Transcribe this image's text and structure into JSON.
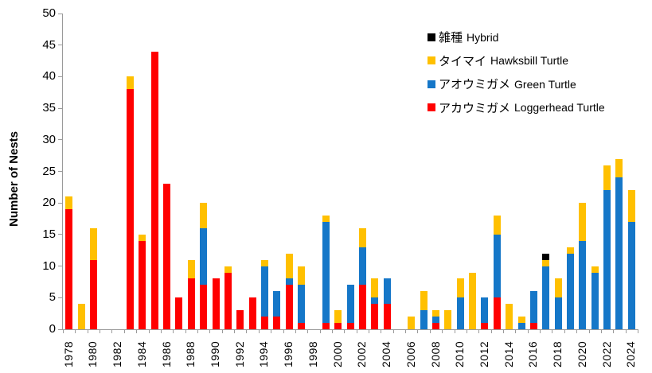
{
  "chart_data": {
    "type": "bar",
    "stacked": true,
    "title": "",
    "xlabel": "",
    "ylabel": "Number of Nests",
    "ylim": [
      0,
      50
    ],
    "ytick_step": 5,
    "xtick_label_interval": 2,
    "grid": false,
    "legend_position": "top-right-inside",
    "categories": [
      1978,
      1979,
      1980,
      1981,
      1982,
      1983,
      1984,
      1985,
      1986,
      1987,
      1988,
      1989,
      1990,
      1991,
      1992,
      1993,
      1994,
      1995,
      1996,
      1997,
      1998,
      1999,
      2000,
      2001,
      2002,
      2003,
      2004,
      2005,
      2006,
      2007,
      2008,
      2009,
      2010,
      2011,
      2012,
      2013,
      2014,
      2015,
      2016,
      2017,
      2018,
      2019,
      2020,
      2021,
      2022,
      2023,
      2024
    ],
    "series": [
      {
        "name_jp": "アカウミガメ",
        "name_en": "Loggerhead Turtle",
        "color": "#FF0000",
        "values": [
          19,
          0,
          11,
          0,
          0,
          38,
          14,
          44,
          23,
          5,
          8,
          7,
          8,
          9,
          3,
          5,
          2,
          2,
          7,
          1,
          0,
          1,
          1,
          1,
          7,
          4,
          4,
          0,
          0,
          0,
          1,
          0,
          0,
          0,
          1,
          5,
          0,
          0,
          1,
          0,
          0,
          0,
          0,
          0,
          0,
          0,
          0
        ]
      },
      {
        "name_jp": "アオウミガメ",
        "name_en": "Green Turtle",
        "color": "#1577C8",
        "values": [
          0,
          0,
          0,
          0,
          0,
          0,
          0,
          0,
          0,
          0,
          0,
          9,
          0,
          0,
          0,
          0,
          8,
          4,
          1,
          6,
          0,
          16,
          0,
          6,
          6,
          1,
          4,
          0,
          0,
          3,
          1,
          0,
          5,
          0,
          4,
          10,
          0,
          1,
          5,
          10,
          5,
          12,
          14,
          9,
          22,
          24,
          17
        ]
      },
      {
        "name_jp": "タイマイ",
        "name_en": "Hawksbill Turtle",
        "color": "#FFC000",
        "values": [
          2,
          4,
          5,
          0,
          0,
          2,
          1,
          0,
          0,
          0,
          3,
          4,
          0,
          1,
          0,
          0,
          1,
          0,
          4,
          3,
          0,
          1,
          2,
          0,
          3,
          3,
          0,
          0,
          2,
          3,
          1,
          3,
          3,
          9,
          0,
          3,
          4,
          1,
          0,
          1,
          3,
          1,
          6,
          1,
          4,
          3,
          5
        ]
      },
      {
        "name_jp": "雑種",
        "name_en": "Hybrid",
        "color": "#000000",
        "values": [
          0,
          0,
          0,
          0,
          0,
          0,
          0,
          0,
          0,
          0,
          0,
          0,
          0,
          0,
          0,
          0,
          0,
          0,
          0,
          0,
          0,
          0,
          0,
          0,
          0,
          0,
          0,
          0,
          0,
          0,
          0,
          0,
          0,
          0,
          0,
          0,
          0,
          0,
          0,
          1,
          0,
          0,
          0,
          0,
          0,
          0,
          0
        ]
      }
    ],
    "legend": [
      {
        "jp": "雑種",
        "en": "Hybrid",
        "color": "#000000"
      },
      {
        "jp": "タイマイ",
        "en": "Hawksbill Turtle",
        "color": "#FFC000"
      },
      {
        "jp": "アオウミガメ",
        "en": "Green Turtle",
        "color": "#1577C8"
      },
      {
        "jp": "アカウミガメ",
        "en": "Loggerhead Turtle",
        "color": "#FF0000"
      }
    ]
  }
}
